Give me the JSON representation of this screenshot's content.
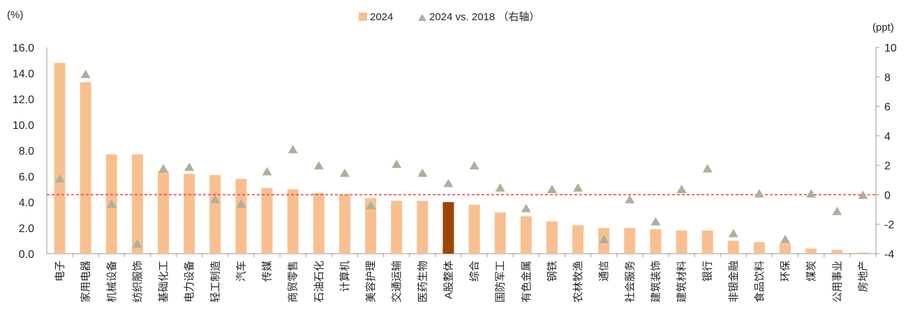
{
  "chart_data": {
    "type": "bar",
    "left_unit": "(%)",
    "right_unit": "(ppt)",
    "categories": [
      "电子",
      "家用电器",
      "机械设备",
      "纺织服饰",
      "基础化工",
      "电力设备",
      "轻工制造",
      "汽车",
      "传媒",
      "商贸零售",
      "石油石化",
      "计算机",
      "美容护理",
      "交通运输",
      "医药生物",
      "A股整体",
      "综合",
      "国防军工",
      "有色金属",
      "钢铁",
      "农林牧渔",
      "通信",
      "社会服务",
      "建筑装饰",
      "建筑材料",
      "银行",
      "非银金融",
      "食品饮料",
      "环保",
      "煤炭",
      "公用事业",
      "房地产"
    ],
    "highlight_category": "A股整体",
    "series": [
      {
        "name": "2024",
        "type": "bar",
        "axis": "left",
        "color": "#F8C090",
        "highlight_color": "#9A4600",
        "values": [
          14.8,
          13.3,
          7.7,
          7.7,
          6.4,
          6.2,
          6.1,
          5.8,
          5.1,
          5.0,
          4.7,
          4.6,
          4.3,
          4.1,
          4.1,
          4.0,
          3.8,
          3.2,
          2.9,
          2.5,
          2.2,
          2.0,
          2.0,
          1.9,
          1.8,
          1.8,
          1.0,
          0.9,
          0.8,
          0.4,
          0.3,
          0.1
        ]
      },
      {
        "name": "2024 vs. 2018 （右轴）",
        "type": "scatter",
        "marker": "triangle",
        "axis": "right",
        "color": "#B0AE9C",
        "values": [
          1.1,
          8.2,
          -0.6,
          -3.3,
          1.8,
          1.9,
          -0.3,
          -0.6,
          1.6,
          3.1,
          2.0,
          1.5,
          -0.7,
          2.1,
          1.5,
          0.8,
          2.0,
          0.5,
          -0.9,
          0.4,
          0.5,
          -3.0,
          -0.3,
          -1.8,
          0.4,
          1.8,
          -2.6,
          0.1,
          -3.0,
          0.1,
          -1.1,
          0.0
        ]
      }
    ],
    "reference_line": {
      "axis": "right",
      "value": 0,
      "color": "#FF3333",
      "style": "dashed"
    },
    "left_axis": {
      "ylim": [
        0,
        16
      ],
      "ticks": [
        "0.0",
        "2.0",
        "4.0",
        "6.0",
        "8.0",
        "10.0",
        "12.0",
        "14.0",
        "16.0"
      ]
    },
    "right_axis": {
      "ylim": [
        -4,
        10
      ],
      "ticks": [
        "-4",
        "-2",
        "0",
        "2",
        "4",
        "6",
        "8",
        "10"
      ]
    },
    "legend_position": "top",
    "grid": false
  }
}
